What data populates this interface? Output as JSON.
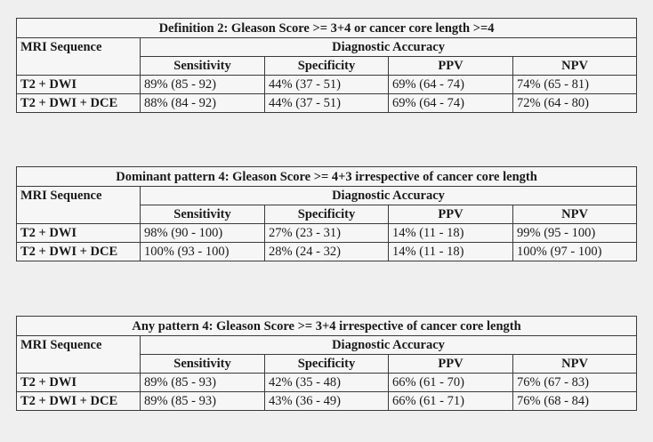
{
  "tables": [
    {
      "title": "Definition 2: Gleason Score >= 3+4 or cancer core length >=4",
      "seq_header": "MRI Sequence",
      "acc_header": "Diagnostic Accuracy",
      "columns": [
        "Sensitivity",
        "Specificity",
        "PPV",
        "NPV"
      ],
      "rows": [
        {
          "label": "T2 + DWI",
          "values": [
            "89% (85 - 92)",
            "44% (37 - 51)",
            "69% (64 - 74)",
            "74% (65 - 81)"
          ]
        },
        {
          "label": "T2 + DWI + DCE",
          "values": [
            "88% (84 - 92)",
            "44% (37 - 51)",
            "69% (64 - 74)",
            "72% (64 - 80)"
          ]
        }
      ]
    },
    {
      "title": "Dominant pattern 4: Gleason Score >= 4+3 irrespective of cancer core length",
      "seq_header": "MRI Sequence",
      "acc_header": "Diagnostic Accuracy",
      "columns": [
        "Sensitivity",
        "Specificity",
        "PPV",
        "NPV"
      ],
      "rows": [
        {
          "label": "T2 + DWI",
          "values": [
            "98% (90 - 100)",
            "27% (23 - 31)",
            "14% (11 - 18)",
            "99% (95 - 100)"
          ]
        },
        {
          "label": "T2 + DWI + DCE",
          "values": [
            "100% (93 - 100)",
            "28% (24 - 32)",
            "14% (11 - 18)",
            "100% (97 - 100)"
          ]
        }
      ]
    },
    {
      "title": "Any pattern 4: Gleason Score >= 3+4 irrespective of cancer core length",
      "seq_header": "MRI Sequence",
      "acc_header": "Diagnostic Accuracy",
      "columns": [
        "Sensitivity",
        "Specificity",
        "PPV",
        "NPV"
      ],
      "rows": [
        {
          "label": "T2 + DWI",
          "values": [
            "89% (85 - 93)",
            "42% (35 - 48)",
            "66% (61 - 70)",
            "76% (67 - 83)"
          ]
        },
        {
          "label": "T2 + DWI + DCE",
          "values": [
            "89% (85 - 93)",
            "43% (36 - 49)",
            "66% (61 - 71)",
            "76% (68 - 84)"
          ]
        }
      ]
    }
  ]
}
